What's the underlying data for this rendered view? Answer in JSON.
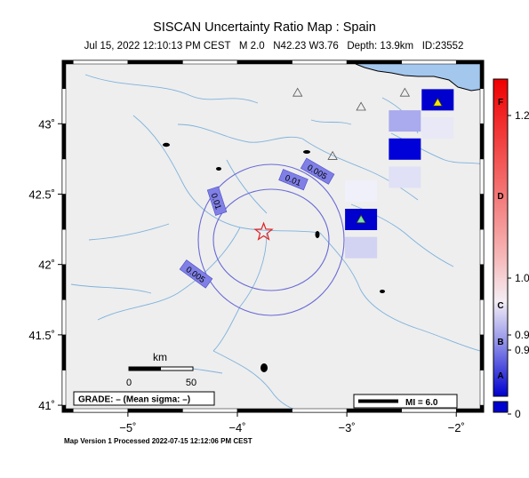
{
  "title": "SISCAN Uncertainty Ratio Map : Spain",
  "subtitle": "Jul 15, 2022 12:10:13 PM CEST   M 2.0   N42.23 W3.76   Depth: 13.9km   ID:23552",
  "footer": "Map Version 1 Processed 2022-07-15 12:12:06 PM CEST",
  "map": {
    "lon_range": [
      -5.6,
      -1.75
    ],
    "lat_range": [
      40.95,
      43.45
    ],
    "x_ticks": [
      {
        "value": -5,
        "label": "−5˚"
      },
      {
        "value": -4,
        "label": "−4˚"
      },
      {
        "value": -3,
        "label": "−3˚"
      },
      {
        "value": -2,
        "label": "−2˚"
      }
    ],
    "y_ticks": [
      {
        "value": 43,
        "label": "43˚"
      },
      {
        "value": 42.5,
        "label": "42.5˚"
      },
      {
        "value": 42,
        "label": "42˚"
      },
      {
        "value": 41.5,
        "label": "41.5˚"
      },
      {
        "value": 41,
        "label": "41˚"
      }
    ],
    "land_color": "#eeeeee",
    "sea_color": "#a4c7ee",
    "river_color": "#7fb2dc",
    "contour_color": "#6a6ad6",
    "epicenter": {
      "lon": -3.76,
      "lat": 42.23
    },
    "contour_labels": [
      {
        "text": "0.005",
        "lon": -3.27,
        "lat": 42.66,
        "angle": 30
      },
      {
        "text": "0.01",
        "lon": -3.49,
        "lat": 42.6,
        "angle": 22
      },
      {
        "text": "0.01",
        "lon": -4.19,
        "lat": 42.45,
        "angle": 72
      },
      {
        "text": "0.005",
        "lon": -4.38,
        "lat": 41.93,
        "angle": 36
      }
    ],
    "stations": [
      {
        "lon": -3.45,
        "lat": 43.22,
        "fill": "none"
      },
      {
        "lon": -2.87,
        "lat": 43.12,
        "fill": "none"
      },
      {
        "lon": -2.47,
        "lat": 43.22,
        "fill": "none"
      },
      {
        "lon": -3.13,
        "lat": 42.77,
        "fill": "none"
      },
      {
        "lon": -2.87,
        "lat": 42.32,
        "fill": "#7be0a7"
      },
      {
        "lon": -2.17,
        "lat": 43.15,
        "fill": "#f6e600"
      }
    ],
    "cells": [
      {
        "lon": -2.87,
        "lat": 42.32,
        "color": "#0000ce"
      },
      {
        "lon": -2.87,
        "lat": 42.52,
        "color": "#f0f0fb"
      },
      {
        "lon": -2.87,
        "lat": 42.12,
        "color": "#d2d2f2"
      },
      {
        "lon": -2.47,
        "lat": 43.02,
        "color": "#aaaaee"
      },
      {
        "lon": -2.47,
        "lat": 42.82,
        "color": "#0000d8"
      },
      {
        "lon": -2.47,
        "lat": 42.62,
        "color": "#e0e0f6"
      },
      {
        "lon": -2.17,
        "lat": 43.17,
        "color": "#0000ce"
      },
      {
        "lon": -2.17,
        "lat": 42.97,
        "color": "#e8e8f6"
      }
    ],
    "scale_bar": {
      "title": "km",
      "left_label": "0",
      "right_label": "50"
    },
    "grade_text": "GRADE: – (Mean sigma: –)",
    "mi_text": "MI = 6.0"
  },
  "colorbar": {
    "letters": [
      "F",
      "D",
      "C",
      "B",
      "A"
    ],
    "values": [
      "1.2",
      "1.0",
      "0.9",
      "0.9",
      "0"
    ]
  }
}
